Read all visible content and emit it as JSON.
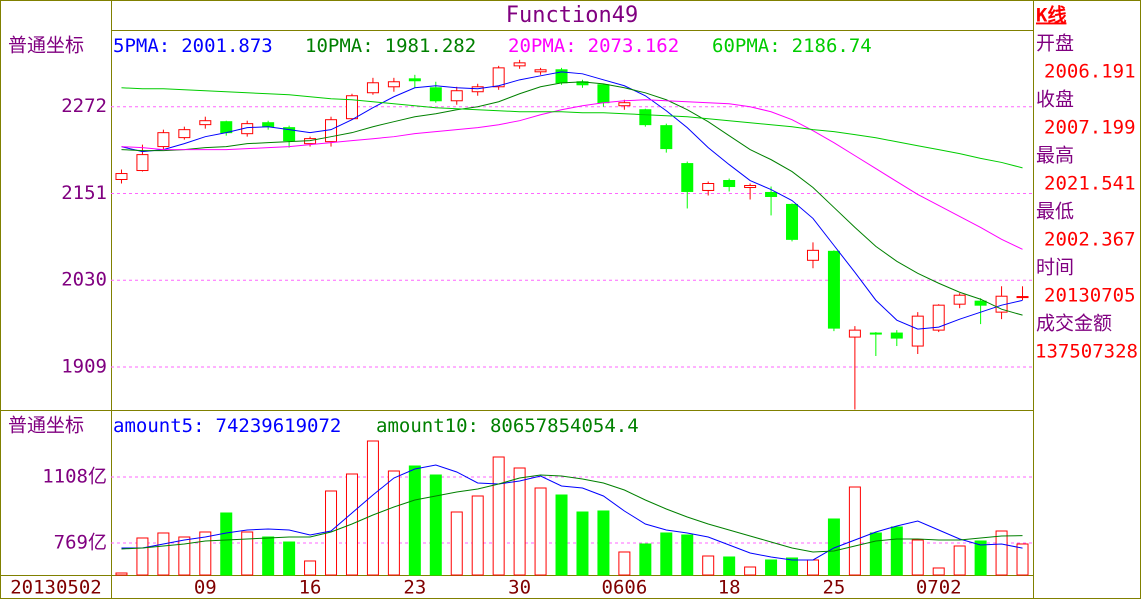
{
  "chart_data": [
    {
      "type": "candlestick",
      "title": "Function49",
      "y_label": "普通坐标",
      "legend_separator": ":",
      "up_color": "#ff0000",
      "down_color": "#00ff00",
      "categories": [
        "20130502",
        null,
        null,
        null,
        "09",
        null,
        null,
        null,
        null,
        "16",
        null,
        null,
        null,
        null,
        "23",
        null,
        null,
        null,
        null,
        "30",
        null,
        null,
        null,
        null,
        "0606",
        null,
        null,
        null,
        null,
        "18",
        null,
        null,
        null,
        null,
        "25",
        null,
        null,
        null,
        null,
        "0702",
        null,
        null,
        null,
        null
      ],
      "open": [
        2170.5,
        2183.0,
        2216.4,
        2228.9,
        2247.0,
        2251.1,
        2234.4,
        2249.7,
        2242.8,
        2220.5,
        2223.3,
        2255.3,
        2291.5,
        2299.8,
        2310.9,
        2298.4,
        2280.3,
        2292.9,
        2299.8,
        2329.0,
        2320.7,
        2323.5,
        2306.8,
        2302.6,
        2273.4,
        2267.8,
        2245.6,
        2192.7,
        2155.2,
        2169.1,
        2159.3,
        2152.4,
        2135.7,
        2057.8,
        2070.3,
        1950.7,
        1956.3,
        1956.3,
        1938.2,
        1960.4,
        1996.6,
        2000.8,
        1985.5,
        2006.191
      ],
      "close": [
        2178.8,
        2205.2,
        2235.8,
        2240.0,
        2252.5,
        2235.8,
        2248.4,
        2244.2,
        2224.7,
        2227.5,
        2253.9,
        2287.3,
        2305.4,
        2306.8,
        2308.2,
        2280.3,
        2294.3,
        2299.8,
        2326.2,
        2333.2,
        2323.5,
        2305.4,
        2302.6,
        2277.6,
        2277.6,
        2247.0,
        2213.6,
        2153.8,
        2164.9,
        2160.7,
        2162.1,
        2146.8,
        2087.0,
        2071.7,
        1963.2,
        1960.4,
        1954.9,
        1949.3,
        1979.9,
        1995.2,
        2009.1,
        1995.2,
        2007.7,
        2007.199
      ],
      "high": [
        2184.4,
        2219.1,
        2240.0,
        2244.2,
        2258.1,
        2252.5,
        2252.5,
        2252.5,
        2245.6,
        2230.3,
        2258.1,
        2290.1,
        2312.3,
        2312.3,
        2316.5,
        2306.8,
        2299.8,
        2304.0,
        2329.0,
        2337.4,
        2326.2,
        2326.2,
        2309.6,
        2304.0,
        2281.7,
        2269.2,
        2248.4,
        2195.5,
        2167.7,
        2171.8,
        2164.9,
        2160.7,
        2137.1,
        2082.8,
        2071.7,
        1966.0,
        1957.7,
        1960.4,
        1985.5,
        1996.6,
        2011.9,
        2004.9,
        2021.6,
        2021.541
      ],
      "low": [
        2164.9,
        2181.6,
        2212.2,
        2226.1,
        2241.4,
        2231.7,
        2230.3,
        2240.0,
        2215.0,
        2216.4,
        2216.4,
        2253.9,
        2288.7,
        2292.9,
        2298.4,
        2277.6,
        2274.8,
        2287.3,
        2295.6,
        2324.9,
        2316.5,
        2302.6,
        2298.4,
        2272.0,
        2267.8,
        2244.2,
        2208.0,
        2130.1,
        2148.2,
        2153.8,
        2142.6,
        2120.4,
        2084.2,
        2046.7,
        1959.0,
        1849.7,
        1924.3,
        1938.2,
        1927.1,
        1957.7,
        1991.0,
        1968.8,
        1975.7,
        2002.367
      ],
      "ylim": [
        1849,
        2379
      ],
      "yticks": [
        1909,
        2030,
        2151,
        2272
      ],
      "grid": true,
      "series": [
        {
          "name": "5PMA",
          "color": "#0000ff",
          "values": [
            2216.3,
            2209.4,
            2212.2,
            2220.5,
            2230.2,
            2235.8,
            2242.8,
            2244.1,
            2240.0,
            2235.8,
            2240.0,
            2253.9,
            2270.6,
            2285.9,
            2298.4,
            2301.2,
            2298.4,
            2297.0,
            2301.2,
            2309.5,
            2315.1,
            2320.6,
            2317.9,
            2309.5,
            2301.2,
            2287.3,
            2266.4,
            2242.8,
            2214.9,
            2191.3,
            2169.0,
            2156.5,
            2141.2,
            2116.2,
            2078.6,
            2041.0,
            2002.1,
            1974.3,
            1961.8,
            1964.6,
            1975.7,
            1985.4,
            1995.2,
            2001.873
          ]
        },
        {
          "name": "10PMA",
          "color": "#008000",
          "values": [
            2212.2,
            2210.8,
            2210.8,
            2212.2,
            2214.9,
            2216.3,
            2220.5,
            2221.9,
            2223.3,
            2224.7,
            2230.2,
            2235.8,
            2244.1,
            2251.1,
            2258.0,
            2262.2,
            2267.8,
            2272.0,
            2278.9,
            2290.1,
            2299.8,
            2305.3,
            2306.7,
            2303.9,
            2298.4,
            2291.4,
            2281.7,
            2267.8,
            2251.1,
            2231.6,
            2212.2,
            2198.2,
            2181.5,
            2159.3,
            2131.5,
            2103.7,
            2077.2,
            2056.4,
            2039.7,
            2025.8,
            2013.2,
            2003.5,
            1989.6,
            1981.282
          ]
        },
        {
          "name": "20PMA",
          "color": "#ff00ff",
          "values": [
            2216.3,
            2214.9,
            2212.2,
            2212.2,
            2212.2,
            2212.2,
            2213.5,
            2214.9,
            2216.3,
            2219.1,
            2221.9,
            2224.7,
            2227.4,
            2230.2,
            2234.4,
            2237.2,
            2240.0,
            2242.8,
            2246.9,
            2252.5,
            2260.8,
            2267.8,
            2273.4,
            2277.5,
            2280.3,
            2281.7,
            2280.3,
            2278.9,
            2277.5,
            2276.1,
            2272.0,
            2265.0,
            2253.9,
            2238.6,
            2221.9,
            2203.8,
            2185.7,
            2167.6,
            2149.6,
            2134.3,
            2119.0,
            2103.7,
            2087.0,
            2073.162
          ]
        },
        {
          "name": "60PMA",
          "color": "#00cc00",
          "values": [
            2298.4,
            2297.0,
            2297.0,
            2295.6,
            2294.2,
            2292.8,
            2291.4,
            2290.0,
            2288.7,
            2285.9,
            2283.1,
            2281.7,
            2278.9,
            2276.1,
            2273.4,
            2270.6,
            2269.2,
            2267.8,
            2266.4,
            2265.0,
            2265.0,
            2265.0,
            2263.6,
            2263.6,
            2262.2,
            2260.8,
            2259.4,
            2258.0,
            2255.3,
            2252.5,
            2249.7,
            2246.9,
            2244.1,
            2240.0,
            2237.2,
            2233.0,
            2228.7,
            2223.1,
            2217.6,
            2212.2,
            2206.6,
            2200.0,
            2194.3,
            2186.74
          ]
        }
      ]
    },
    {
      "type": "bar",
      "y_label": "普通坐标",
      "legend_separator": ":",
      "values": [
        614.9,
        794.7,
        820.4,
        799.8,
        825.5,
        923.1,
        825.5,
        799.8,
        774.1,
        676.6,
        1036.1,
        1123.4,
        1292.9,
        1138.8,
        1164.5,
        1118.2,
        928.2,
        1010.4,
        1210.7,
        1154.2,
        1051.5,
        1015.5,
        928.2,
        933.4,
        722.8,
        763.9,
        820.4,
        810.1,
        702.2,
        697.1,
        645.7,
        681.7,
        692.0,
        681.7,
        892.3,
        1056.6,
        820.4,
        851.2,
        784.4,
        640.6,
        753.6,
        779.3,
        830.6,
        763.9
      ],
      "ylim": [
        604.6,
        1452.1
      ],
      "yticks": [
        {
          "value": 769,
          "label": "769亿"
        },
        {
          "value": 1108,
          "label": "1108亿"
        }
      ],
      "grid": true,
      "series": [
        {
          "name": "amount5",
          "color": "#0000ff",
          "values": [
            743.3,
            743.3,
            763.9,
            784.4,
            799.8,
            820.4,
            835.8,
            840.9,
            835.8,
            810.1,
            830.6,
            923.1,
            1015.5,
            1102.8,
            1149.1,
            1169.6,
            1133.7,
            1077.2,
            1072.0,
            1087.4,
            1113.1,
            1061.8,
            1051.5,
            1010.4,
            933.4,
            866.6,
            835.8,
            820.4,
            799.8,
            758.7,
            717.6,
            697.1,
            681.7,
            681.7,
            743.3,
            784.4,
            825.5,
            856.3,
            882.0,
            835.8,
            789.5,
            758.7,
            763.9,
            742.39619072
          ],
          "value_labels": [
            null,
            null,
            null,
            null,
            null,
            null,
            null,
            null,
            null,
            null,
            null,
            null,
            null,
            null,
            null,
            null,
            null,
            null,
            null,
            null,
            null,
            null,
            null,
            null,
            null,
            null,
            null,
            null,
            null,
            null,
            null,
            null,
            null,
            null,
            null,
            null,
            null,
            null,
            null,
            null,
            null,
            null,
            null,
            "74239619072"
          ]
        },
        {
          "name": "amount10",
          "color": "#008000",
          "values": [
            738.2,
            743.3,
            753.6,
            763.9,
            779.3,
            784.4,
            789.5,
            794.7,
            799.8,
            799.8,
            825.5,
            866.6,
            912.8,
            953.9,
            989.8,
            1010.4,
            1031.0,
            1046.3,
            1072.0,
            1102.8,
            1118.2,
            1113.1,
            1097.7,
            1077.2,
            1041.2,
            989.8,
            943.6,
            902.5,
            866.6,
            835.8,
            805.0,
            774.1,
            743.3,
            722.8,
            727.9,
            753.6,
            779.3,
            789.5,
            789.5,
            784.4,
            784.4,
            794.7,
            805.0,
            806.578540544
          ],
          "value_labels": [
            null,
            null,
            null,
            null,
            null,
            null,
            null,
            null,
            null,
            null,
            null,
            null,
            null,
            null,
            null,
            null,
            null,
            null,
            null,
            null,
            null,
            null,
            null,
            null,
            null,
            null,
            null,
            null,
            null,
            null,
            null,
            null,
            null,
            null,
            null,
            null,
            null,
            null,
            null,
            null,
            null,
            null,
            null,
            "80657854054.4"
          ]
        }
      ]
    }
  ],
  "info": {
    "title": "K线",
    "items": [
      {
        "label": "开盘",
        "value": "2006.191"
      },
      {
        "label": "收盘",
        "value": "2007.199"
      },
      {
        "label": "最高",
        "value": "2021.541"
      },
      {
        "label": "最低",
        "value": "2002.367"
      },
      {
        "label": "时间",
        "value": "20130705"
      },
      {
        "label": "成交金额",
        "value": "137507328"
      }
    ]
  }
}
